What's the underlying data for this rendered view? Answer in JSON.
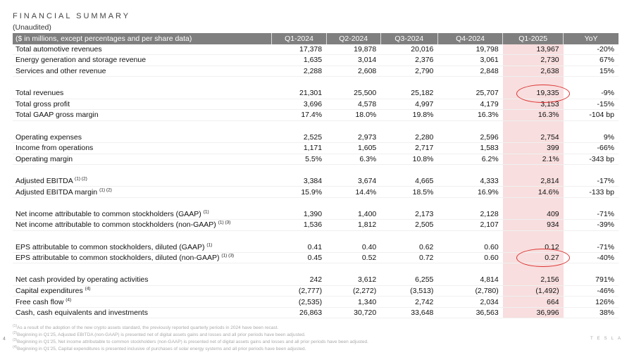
{
  "title": "FINANCIAL SUMMARY",
  "subtitle": "(Unaudited)",
  "header": [
    "($ in millions, except percentages and per share data)",
    "Q1-2024",
    "Q2-2024",
    "Q3-2024",
    "Q4-2024",
    "Q1-2025",
    "YoY"
  ],
  "groups": [
    [
      {
        "label": "Total automotive revenues",
        "sup": "",
        "values": [
          "17,378",
          "19,878",
          "20,016",
          "19,798",
          "13,967",
          "-20%"
        ]
      },
      {
        "label": "Energy generation and storage revenue",
        "sup": "",
        "values": [
          "1,635",
          "3,014",
          "2,376",
          "3,061",
          "2,730",
          "67%"
        ]
      },
      {
        "label": "Services and other revenue",
        "sup": "",
        "values": [
          "2,288",
          "2,608",
          "2,790",
          "2,848",
          "2,638",
          "15%"
        ]
      }
    ],
    [
      {
        "label": "Total revenues",
        "sup": "",
        "values": [
          "21,301",
          "25,500",
          "25,182",
          "25,707",
          "19,335",
          "-9%"
        ]
      },
      {
        "label": "Total gross profit",
        "sup": "",
        "values": [
          "3,696",
          "4,578",
          "4,997",
          "4,179",
          "3,153",
          "-15%"
        ]
      },
      {
        "label": "Total GAAP gross margin",
        "sup": "",
        "values": [
          "17.4%",
          "18.0%",
          "19.8%",
          "16.3%",
          "16.3%",
          "-104 bp"
        ]
      }
    ],
    [
      {
        "label": "Operating expenses",
        "sup": "",
        "values": [
          "2,525",
          "2,973",
          "2,280",
          "2,596",
          "2,754",
          "9%"
        ]
      },
      {
        "label": "Income from operations",
        "sup": "",
        "values": [
          "1,171",
          "1,605",
          "2,717",
          "1,583",
          "399",
          "-66%"
        ]
      },
      {
        "label": "Operating margin",
        "sup": "",
        "values": [
          "5.5%",
          "6.3%",
          "10.8%",
          "6.2%",
          "2.1%",
          "-343 bp"
        ]
      }
    ],
    [
      {
        "label": "Adjusted EBITDA",
        "sup": "(1) (2)",
        "values": [
          "3,384",
          "3,674",
          "4,665",
          "4,333",
          "2,814",
          "-17%"
        ]
      },
      {
        "label": "Adjusted EBITDA margin",
        "sup": "(1) (2)",
        "values": [
          "15.9%",
          "14.4%",
          "18.5%",
          "16.9%",
          "14.6%",
          "-133 bp"
        ]
      }
    ],
    [
      {
        "label": "Net income attributable to common stockholders (GAAP)",
        "sup": "(1)",
        "values": [
          "1,390",
          "1,400",
          "2,173",
          "2,128",
          "409",
          "-71%"
        ]
      },
      {
        "label": "Net income attributable to common stockholders (non-GAAP)",
        "sup": "(1) (3)",
        "values": [
          "1,536",
          "1,812",
          "2,505",
          "2,107",
          "934",
          "-39%"
        ]
      }
    ],
    [
      {
        "label": "EPS attributable to common stockholders, diluted (GAAP)",
        "sup": "(1)",
        "values": [
          "0.41",
          "0.40",
          "0.62",
          "0.60",
          "0.12",
          "-71%"
        ]
      },
      {
        "label": "EPS attributable to common stockholders, diluted (non-GAAP)",
        "sup": "(1) (3)",
        "values": [
          "0.45",
          "0.52",
          "0.72",
          "0.60",
          "0.27",
          "-40%"
        ]
      }
    ],
    [
      {
        "label": "Net cash provided by operating activities",
        "sup": "",
        "values": [
          "242",
          "3,612",
          "6,255",
          "4,814",
          "2,156",
          "791%"
        ]
      },
      {
        "label": "Capital expenditures",
        "sup": "(4)",
        "values": [
          "(2,777)",
          "(2,272)",
          "(3,513)",
          "(2,780)",
          "(1,492)",
          "-46%"
        ]
      },
      {
        "label": "Free cash flow",
        "sup": "(4)",
        "values": [
          "(2,535)",
          "1,340",
          "2,742",
          "2,034",
          "664",
          "126%"
        ]
      },
      {
        "label": "Cash, cash equivalents and investments",
        "sup": "",
        "values": [
          "26,863",
          "30,720",
          "33,648",
          "36,563",
          "36,996",
          "38%"
        ]
      }
    ]
  ],
  "footnotes": [
    {
      "sup": "(1)",
      "text": "As a result of the adoption of the new crypto assets standard, the previously reported quarterly periods in 2024 have been recast."
    },
    {
      "sup": "(2)",
      "text": "Beginning in Q1'25, Adjusted EBITDA (non-GAAP) is presented net of digital assets gains and losses and all prior periods have been adjusted."
    },
    {
      "sup": "(3)",
      "text": "Beginning in Q1'25, Net income attributable to common stockholders (non-GAAP) is presented net of digital assets gains and losses and all prior periods have been adjusted."
    },
    {
      "sup": "(4)",
      "text": "Beginning in Q1'25, Capital expenditures is presented inclusive of purchases of solar energy systems and all prior periods have been adjusted."
    }
  ],
  "page_number": "4",
  "logo": "TESLA",
  "highlight_color": "#f8dede",
  "annotation_color": "#dd3333"
}
